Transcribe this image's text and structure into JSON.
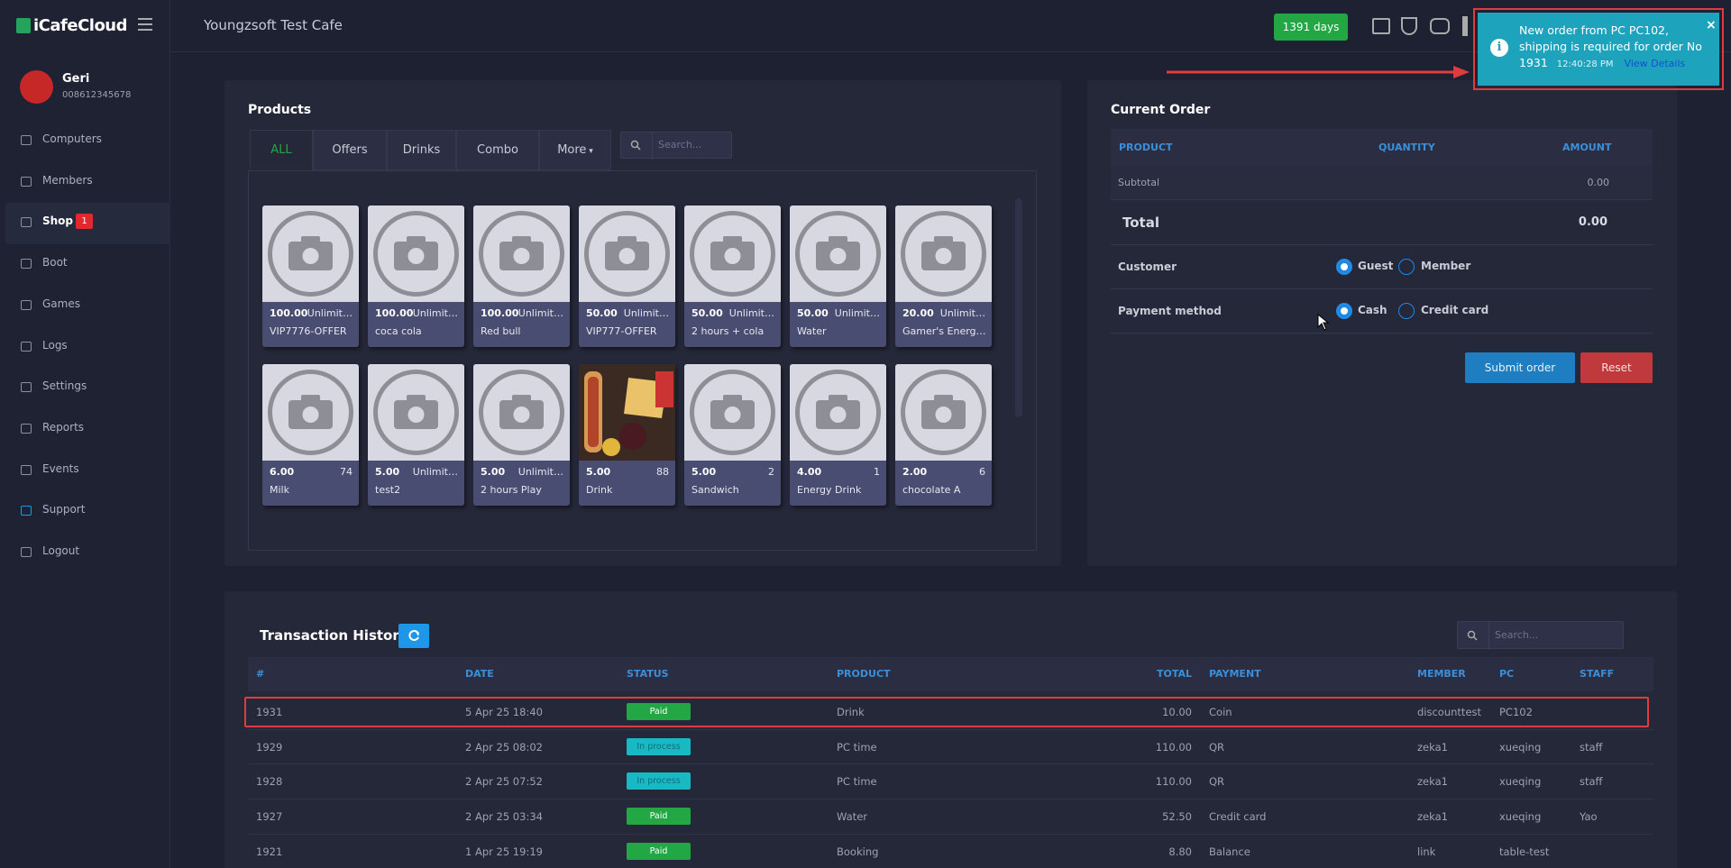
{
  "brand": "iCafeCloud",
  "header": {
    "cafe": "Youngzsoft Test Cafe",
    "days": "1391 days"
  },
  "user": {
    "name": "Geri",
    "id": "008612345678"
  },
  "sidebar": [
    {
      "label": "Computers"
    },
    {
      "label": "Members"
    },
    {
      "label": "Shop",
      "badge": "1"
    },
    {
      "label": "Boot"
    },
    {
      "label": "Games"
    },
    {
      "label": "Logs"
    },
    {
      "label": "Settings"
    },
    {
      "label": "Reports"
    },
    {
      "label": "Events"
    },
    {
      "label": "Support"
    },
    {
      "label": "Logout"
    }
  ],
  "products": {
    "title": "Products",
    "tabs": [
      "ALL",
      "Offers",
      "Drinks",
      "Combo",
      "More"
    ],
    "search": "Search...",
    "items": [
      {
        "price": "100.00",
        "stock": "Unlimit…",
        "name": "VIP7776-OFFER"
      },
      {
        "price": "100.00",
        "stock": "Unlimit…",
        "name": "coca cola"
      },
      {
        "price": "100.00",
        "stock": "Unlimit…",
        "name": "Red bull"
      },
      {
        "price": "50.00",
        "stock": "Unlimit…",
        "name": "VIP777-OFFER"
      },
      {
        "price": "50.00",
        "stock": "Unlimit…",
        "name": "2 hours + cola"
      },
      {
        "price": "50.00",
        "stock": "Unlimit…",
        "name": "Water"
      },
      {
        "price": "20.00",
        "stock": "Unlimit…",
        "name": "Gamer's Energ…"
      },
      {
        "price": "6.00",
        "stock": "74",
        "name": "Milk"
      },
      {
        "price": "5.00",
        "stock": "Unlimit…",
        "name": "test2"
      },
      {
        "price": "5.00",
        "stock": "Unlimit…",
        "name": "2 hours Play"
      },
      {
        "price": "5.00",
        "stock": "88",
        "name": "Drink",
        "photo": true
      },
      {
        "price": "5.00",
        "stock": "2",
        "name": "Sandwich"
      },
      {
        "price": "4.00",
        "stock": "1",
        "name": "Energy Drink"
      },
      {
        "price": "2.00",
        "stock": "6",
        "name": "chocolate A"
      }
    ]
  },
  "order": {
    "title": "Current Order",
    "columns": [
      "PRODUCT",
      "QUANTITY",
      "AMOUNT"
    ],
    "subtotal_label": "Subtotal",
    "subtotal": "0.00",
    "total_label": "Total",
    "total": "0.00",
    "customer_label": "Customer",
    "customer_options": [
      "Guest",
      "Member"
    ],
    "payment_label": "Payment method",
    "payment_options": [
      "Cash",
      "Credit card"
    ],
    "submit": "Submit order",
    "reset": "Reset"
  },
  "transactions": {
    "title": "Transaction History",
    "search": "Search...",
    "columns": [
      "#",
      "DATE",
      "STATUS",
      "PRODUCT",
      "TOTAL",
      "PAYMENT",
      "MEMBER",
      "PC",
      "STAFF"
    ],
    "rows": [
      [
        "1931",
        "5 Apr 25 18:40",
        "Paid",
        "Drink",
        "10.00",
        "Coin",
        "discounttest",
        "PC102",
        null
      ],
      [
        "1929",
        "2 Apr 25 08:02",
        "In process",
        "PC time",
        "110.00",
        "QR",
        "zeka1",
        "xueqing",
        "staff"
      ],
      [
        "1928",
        "2 Apr 25 07:52",
        "In process",
        "PC time",
        "110.00",
        "QR",
        "zeka1",
        "xueqing",
        "staff"
      ],
      [
        "1927",
        "2 Apr 25 03:34",
        "Paid",
        "Water",
        "52.50",
        "Credit card",
        "zeka1",
        "xueqing",
        "Yao"
      ],
      [
        "1921",
        "1 Apr 25 19:19",
        "Paid",
        "Booking",
        "8.80",
        "Balance",
        "link",
        "table-test",
        null
      ]
    ]
  },
  "notification": {
    "message": "New order from PC PC102, shipping is required for order No 1931",
    "time": "12:40:28 PM",
    "link": "View Details"
  }
}
